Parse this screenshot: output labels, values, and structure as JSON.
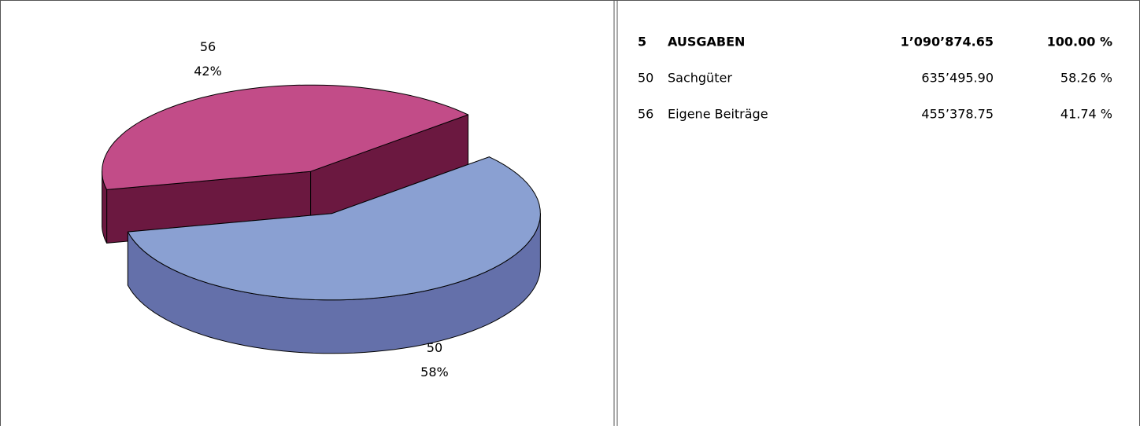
{
  "chart_data": {
    "type": "pie",
    "categories": [
      "50",
      "56"
    ],
    "values": [
      58,
      42
    ],
    "value_labels": [
      "58%",
      "42%"
    ],
    "colors": [
      "#8aa0d2",
      "#c24c88"
    ],
    "side_colors": [
      "#6470aa",
      "#6b1840"
    ]
  },
  "table": {
    "rows": [
      [
        "5",
        "AUSGABEN",
        "1’090’874.65",
        "100.00 %"
      ],
      [
        "50",
        "Sachgüter",
        "635’495.90",
        "58.26 %"
      ],
      [
        "56",
        "Eigene Beiträge",
        "455’378.75",
        "41.74 %"
      ]
    ]
  }
}
